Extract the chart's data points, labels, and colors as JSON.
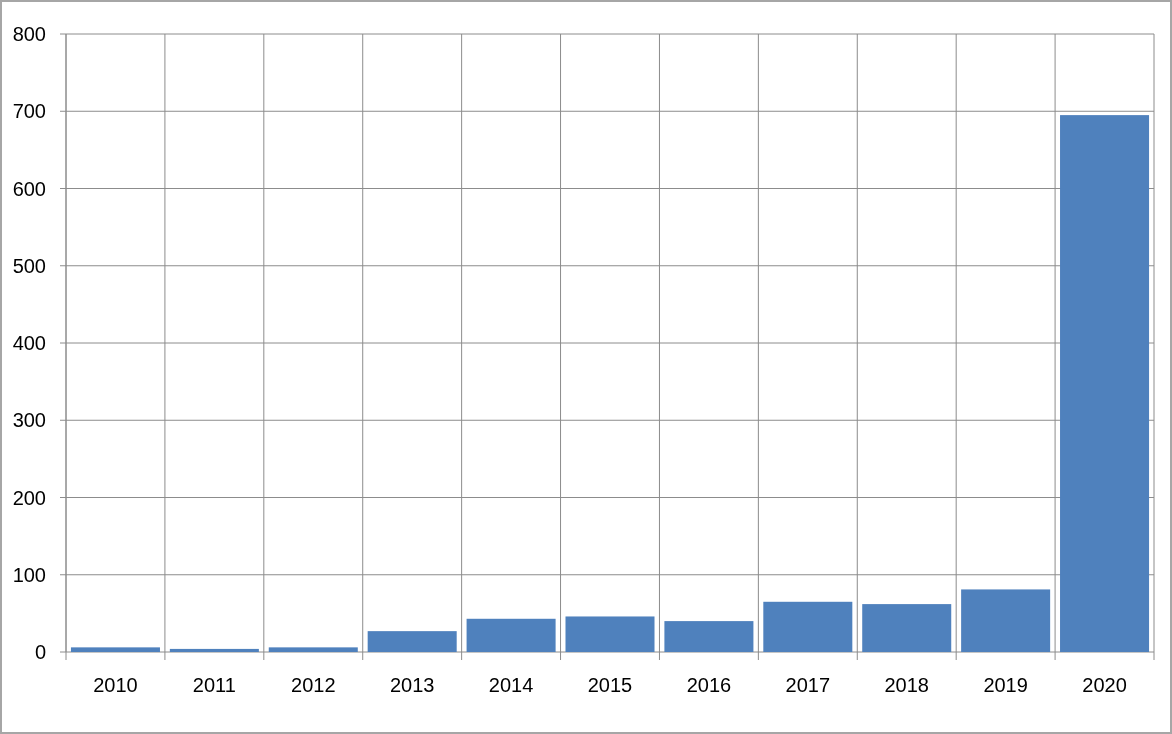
{
  "chart_data": {
    "type": "bar",
    "categories": [
      "2010",
      "2011",
      "2012",
      "2013",
      "2014",
      "2015",
      "2016",
      "2017",
      "2018",
      "2019",
      "2020"
    ],
    "values": [
      6,
      4,
      6,
      27,
      43,
      46,
      40,
      65,
      62,
      81,
      695
    ],
    "color": "#4f81bd",
    "ylim": [
      0,
      800
    ],
    "yticks": [
      0,
      100,
      200,
      300,
      400,
      500,
      600,
      700,
      800
    ],
    "grid": true
  }
}
